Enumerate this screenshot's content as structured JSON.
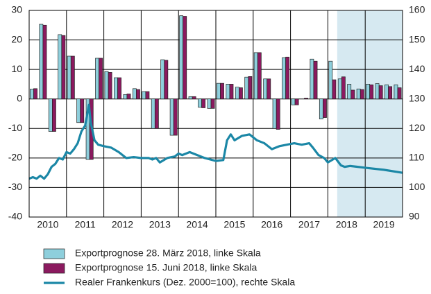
{
  "chart_data": {
    "type": "bar",
    "xlim": [
      2010,
      2020
    ],
    "xticks": [
      {
        "value": 2010.5,
        "label": "2010"
      },
      {
        "value": 2011.5,
        "label": "2011"
      },
      {
        "value": 2012.5,
        "label": "2012"
      },
      {
        "value": 2013.5,
        "label": "2013"
      },
      {
        "value": 2014.5,
        "label": "2014"
      },
      {
        "value": 2015.5,
        "label": "2015"
      },
      {
        "value": 2016.5,
        "label": "2016"
      },
      {
        "value": 2017.5,
        "label": "2017"
      },
      {
        "value": 2018.5,
        "label": "2018"
      },
      {
        "value": 2019.5,
        "label": "2019"
      }
    ],
    "ylim": [
      -40,
      30
    ],
    "yticks": [
      -40,
      -30,
      -20,
      -10,
      0,
      10,
      20,
      30
    ],
    "y2lim": [
      90,
      160
    ],
    "y2ticks": [
      90,
      100,
      110,
      120,
      130,
      140,
      150,
      160
    ],
    "shade_xlim": [
      2018.25,
      2020
    ],
    "shade_color": "#d6e9f1",
    "grid": true,
    "series": [
      {
        "name": "Exportprognose 28. März 2018, linke Skala",
        "type": "bar",
        "color": "#8ecfdc",
        "x": [
          2010,
          2010.25,
          2010.5,
          2010.75,
          2011,
          2011.25,
          2011.5,
          2011.75,
          2012,
          2012.25,
          2012.5,
          2012.75,
          2013,
          2013.25,
          2013.5,
          2013.75,
          2014,
          2014.25,
          2014.5,
          2014.75,
          2015,
          2015.25,
          2015.5,
          2015.75,
          2016,
          2016.25,
          2016.5,
          2016.75,
          2017,
          2017.25,
          2017.5,
          2017.75,
          2018,
          2018.25,
          2018.5,
          2018.75,
          2019,
          2019.25,
          2019.5,
          2019.75
        ],
        "values": [
          3.3,
          25.3,
          -11,
          21.8,
          14.5,
          -8,
          -20.5,
          13.8,
          9.3,
          7.2,
          1.5,
          3.5,
          2.5,
          -10,
          13.3,
          -12.3,
          28.2,
          0.8,
          -2.8,
          -3.2,
          5.3,
          5,
          4,
          7.4,
          15.7,
          6.8,
          -10,
          14,
          -2,
          0,
          13.5,
          -6.8,
          12.8,
          6.8,
          5,
          3.4,
          5,
          5.2,
          4.8,
          4.8
        ]
      },
      {
        "name": "Exportprognose 15. Juni 2018, linke Skala",
        "type": "bar",
        "color": "#8b1a5f",
        "x": [
          2010,
          2010.25,
          2010.5,
          2010.75,
          2011,
          2011.25,
          2011.5,
          2011.75,
          2012,
          2012.25,
          2012.5,
          2012.75,
          2013,
          2013.25,
          2013.5,
          2013.75,
          2014,
          2014.25,
          2014.5,
          2014.75,
          2015,
          2015.25,
          2015.5,
          2015.75,
          2016,
          2016.25,
          2016.5,
          2016.75,
          2017,
          2017.25,
          2017.5,
          2017.75,
          2018,
          2018.25,
          2018.5,
          2018.75,
          2019,
          2019.25,
          2019.5,
          2019.75
        ],
        "values": [
          3.5,
          25,
          -11,
          21.5,
          14.5,
          -8,
          -20.5,
          13.8,
          9,
          7.2,
          1.7,
          3.2,
          2.5,
          -10,
          13.1,
          -12.3,
          28,
          0.8,
          -3,
          -3.2,
          5.3,
          5,
          3.8,
          7.6,
          15.7,
          6.8,
          -10.3,
          14.2,
          -2,
          0.3,
          12.8,
          -6.3,
          6.5,
          7.5,
          3,
          3.2,
          4.8,
          4.5,
          4.2,
          3.8
        ]
      },
      {
        "name": "Realer Frankenkurs (Dez. 2000=100), rechte Skala",
        "type": "line",
        "axis": "y2",
        "color": "#1b87a6",
        "x": [
          2010,
          2010.1,
          2010.2,
          2010.3,
          2010.4,
          2010.5,
          2010.6,
          2010.7,
          2010.8,
          2010.9,
          2011,
          2011.1,
          2011.2,
          2011.3,
          2011.4,
          2011.5,
          2011.6,
          2011.65,
          2011.75,
          2011.85,
          2012,
          2012.2,
          2012.4,
          2012.6,
          2012.8,
          2013,
          2013.2,
          2013.3,
          2013.4,
          2013.5,
          2013.7,
          2013.9,
          2014,
          2014.1,
          2014.3,
          2014.5,
          2014.7,
          2015,
          2015.2,
          2015.3,
          2015.4,
          2015.5,
          2015.7,
          2015.9,
          2016.1,
          2016.3,
          2016.5,
          2016.7,
          2016.9,
          2017.1,
          2017.3,
          2017.5,
          2017.6,
          2017.75,
          2017.9,
          2018,
          2018.2,
          2018.35,
          2018.45,
          2018.6,
          2018.8,
          2019,
          2019.5,
          2020
        ],
        "values": [
          103,
          103.5,
          103,
          104,
          103,
          104.5,
          107,
          108,
          110,
          109.5,
          112,
          111.5,
          113,
          115,
          119,
          121,
          128,
          122,
          116,
          114.5,
          114,
          113.5,
          112,
          110,
          110.3,
          110,
          110,
          109.5,
          110,
          108.5,
          110,
          110.5,
          111.5,
          111,
          112,
          111,
          110,
          109,
          109.3,
          116,
          118,
          116,
          117.5,
          118,
          116,
          115,
          113,
          114,
          114.5,
          115,
          114.5,
          115,
          113.5,
          111,
          110,
          108.5,
          110,
          107.5,
          107,
          107.3,
          107,
          106.7,
          106,
          105
        ]
      }
    ]
  }
}
